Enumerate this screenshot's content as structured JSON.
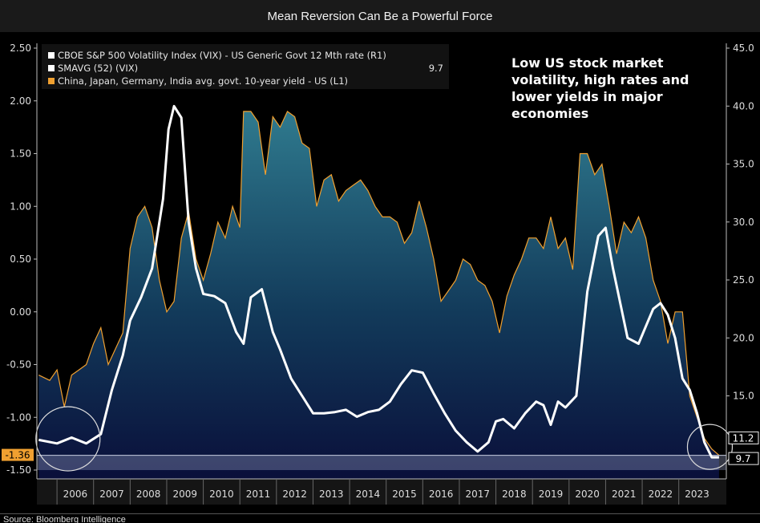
{
  "title": "Mean Reversion Can Be a Powerful Force",
  "source": "Source: Bloomberg Intelligence",
  "chart_data": {
    "type": "area",
    "legend": [
      {
        "name": "CBOE S&P 500 Volatility Index (VIX) - US Generic Govt 12 Mth rate (R1)",
        "color": "#ffffff",
        "last": ""
      },
      {
        "name": "SMAVG (52) (VIX)",
        "color": "#ffffff",
        "last": "9.7"
      },
      {
        "name": "China, Japan, Germany, India avg. govt. 10-year yield - US (L1)",
        "color": "#f0a030",
        "last": ""
      }
    ],
    "annotation": "Low US stock market volatility, high rates and lower yields in major economies",
    "x_labels": [
      "2006",
      "2007",
      "2008",
      "2009",
      "2010",
      "2011",
      "2012",
      "2013",
      "2014",
      "2015",
      "2016",
      "2017",
      "2018",
      "2019",
      "2020",
      "2021",
      "2022",
      "2023"
    ],
    "xlim": [
      2005.45,
      2024.3
    ],
    "left_axis": {
      "ticks": [
        "2.50",
        "2.00",
        "1.50",
        "1.00",
        "0.50",
        "0.00",
        "-0.50",
        "-1.00",
        "-1.50"
      ],
      "ylim": [
        -1.5,
        2.5
      ]
    },
    "right_axis": {
      "ticks": [
        "45.0",
        "40.0",
        "35.0",
        "30.0",
        "25.0",
        "20.0",
        "15.0"
      ],
      "ylim": [
        8.6,
        45.0
      ]
    },
    "left_last_label": "-1.36",
    "right_last_labels": [
      "11.2",
      "9.7"
    ],
    "yield_spread": {
      "x": [
        2005.5,
        2005.8,
        2006.0,
        2006.2,
        2006.4,
        2006.6,
        2006.8,
        2007.0,
        2007.2,
        2007.4,
        2007.6,
        2007.8,
        2008.0,
        2008.2,
        2008.4,
        2008.6,
        2008.8,
        2009.0,
        2009.2,
        2009.4,
        2009.6,
        2009.8,
        2010.0,
        2010.2,
        2010.4,
        2010.6,
        2010.8,
        2011.0,
        2011.1,
        2011.3,
        2011.5,
        2011.7,
        2011.9,
        2012.1,
        2012.3,
        2012.5,
        2012.7,
        2012.9,
        2013.1,
        2013.3,
        2013.5,
        2013.7,
        2013.9,
        2014.1,
        2014.3,
        2014.5,
        2014.7,
        2014.9,
        2015.1,
        2015.3,
        2015.5,
        2015.7,
        2015.9,
        2016.1,
        2016.3,
        2016.5,
        2016.7,
        2016.9,
        2017.1,
        2017.3,
        2017.5,
        2017.7,
        2017.9,
        2018.1,
        2018.3,
        2018.5,
        2018.7,
        2018.9,
        2019.1,
        2019.3,
        2019.5,
        2019.7,
        2019.9,
        2020.1,
        2020.3,
        2020.5,
        2020.7,
        2020.9,
        2021.1,
        2021.3,
        2021.5,
        2021.7,
        2021.9,
        2022.1,
        2022.3,
        2022.5,
        2022.7,
        2022.9,
        2023.1,
        2023.3,
        2023.5,
        2023.7,
        2023.9,
        2024.1
      ],
      "y": [
        -0.6,
        -0.65,
        -0.55,
        -0.9,
        -0.6,
        -0.55,
        -0.5,
        -0.3,
        -0.15,
        -0.5,
        -0.35,
        -0.2,
        0.6,
        0.9,
        1.0,
        0.8,
        0.3,
        0.0,
        0.1,
        0.7,
        0.95,
        0.5,
        0.3,
        0.55,
        0.85,
        0.7,
        1.0,
        0.8,
        1.9,
        1.9,
        1.8,
        1.3,
        1.85,
        1.75,
        1.9,
        1.85,
        1.6,
        1.55,
        1.0,
        1.25,
        1.3,
        1.05,
        1.15,
        1.2,
        1.25,
        1.15,
        1.0,
        0.9,
        0.9,
        0.85,
        0.65,
        0.75,
        1.05,
        0.8,
        0.5,
        0.1,
        0.2,
        0.3,
        0.5,
        0.45,
        0.3,
        0.25,
        0.1,
        -0.2,
        0.15,
        0.35,
        0.5,
        0.7,
        0.7,
        0.6,
        0.9,
        0.6,
        0.7,
        0.4,
        1.5,
        1.5,
        1.3,
        1.4,
        1.0,
        0.55,
        0.85,
        0.75,
        0.9,
        0.7,
        0.3,
        0.1,
        -0.3,
        0.0,
        0.0,
        -0.8,
        -1.0,
        -1.2,
        -1.3,
        -1.36
      ]
    },
    "vix_smavg": {
      "x": [
        2005.5,
        2006.0,
        2006.4,
        2006.8,
        2007.2,
        2007.5,
        2007.8,
        2008.0,
        2008.3,
        2008.6,
        2008.9,
        2009.05,
        2009.2,
        2009.4,
        2009.6,
        2009.8,
        2010.0,
        2010.3,
        2010.6,
        2010.9,
        2011.1,
        2011.3,
        2011.6,
        2011.9,
        2012.1,
        2012.4,
        2012.7,
        2013.0,
        2013.3,
        2013.6,
        2013.9,
        2014.2,
        2014.5,
        2014.8,
        2015.1,
        2015.4,
        2015.7,
        2016.0,
        2016.3,
        2016.6,
        2016.9,
        2017.2,
        2017.5,
        2017.8,
        2018.0,
        2018.2,
        2018.5,
        2018.8,
        2019.1,
        2019.3,
        2019.5,
        2019.7,
        2019.9,
        2020.2,
        2020.5,
        2020.8,
        2021.0,
        2021.2,
        2021.4,
        2021.6,
        2021.9,
        2022.1,
        2022.3,
        2022.5,
        2022.7,
        2022.9,
        2023.1,
        2023.3,
        2023.5,
        2023.7,
        2023.9,
        2024.0,
        2024.1
      ],
      "y": [
        11.2,
        10.9,
        11.4,
        10.9,
        11.7,
        15.5,
        18.5,
        21.5,
        23.5,
        26.0,
        32.0,
        38.0,
        40.0,
        39.0,
        30.0,
        26.0,
        23.8,
        23.6,
        23.0,
        20.5,
        19.5,
        23.5,
        24.2,
        20.5,
        19.0,
        16.5,
        15.0,
        13.5,
        13.5,
        13.6,
        13.8,
        13.2,
        13.6,
        13.8,
        14.5,
        16.0,
        17.2,
        17.0,
        15.2,
        13.5,
        12.0,
        11.0,
        10.2,
        11.0,
        12.8,
        13.0,
        12.2,
        13.5,
        14.5,
        14.2,
        12.5,
        14.5,
        14.0,
        15.0,
        24.0,
        28.8,
        29.5,
        26.0,
        23.0,
        20.0,
        19.5,
        21.0,
        22.5,
        23.0,
        22.0,
        20.0,
        16.5,
        15.5,
        13.5,
        11.0,
        9.7,
        9.7,
        9.7
      ]
    }
  }
}
